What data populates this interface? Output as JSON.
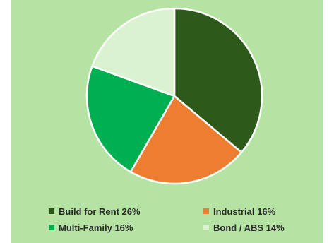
{
  "chart_data": {
    "type": "pie",
    "title": "",
    "slices": [
      {
        "label": "Build for Rent 26%",
        "value": 26,
        "color": "#2d5a1b"
      },
      {
        "label": "Industrial 16%",
        "value": 16,
        "color": "#ed7d31"
      },
      {
        "label": "Multi-Family 16%",
        "value": 16,
        "color": "#00b050"
      },
      {
        "label": "Bond / ABS 14%",
        "value": 14,
        "color": "#daf2d0"
      }
    ],
    "start_angle_deg": 0,
    "direction": "clockwise",
    "legend_placement": "bottom"
  }
}
